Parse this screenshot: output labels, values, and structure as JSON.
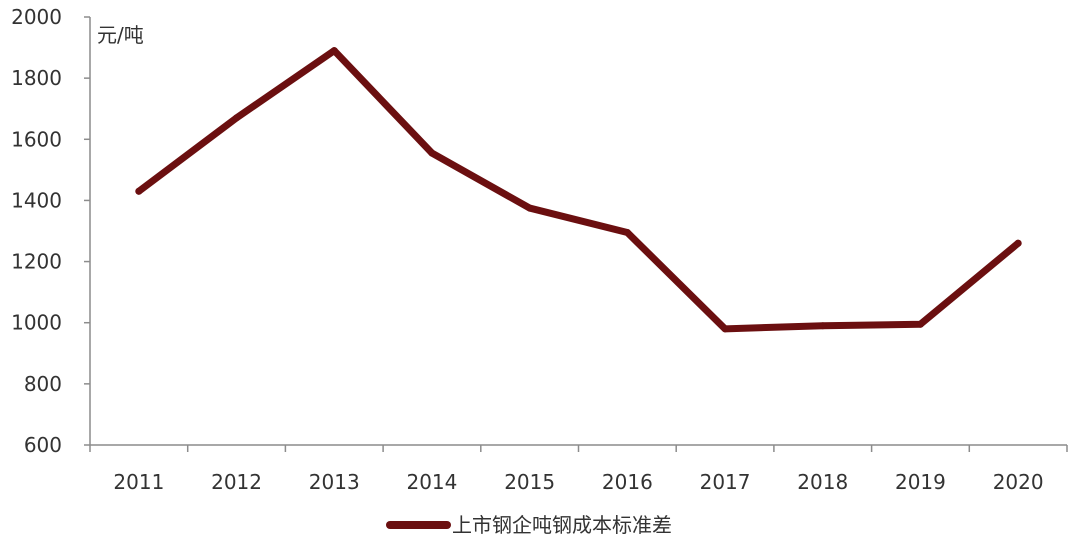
{
  "chart_data": {
    "type": "line",
    "y_unit_label": "元/吨",
    "categories": [
      "2011",
      "2012",
      "2013",
      "2014",
      "2015",
      "2016",
      "2017",
      "2018",
      "2019",
      "2020"
    ],
    "series": [
      {
        "name": "上市钢企吨钢成本标准差",
        "color": "#6b0f10",
        "values": [
          1430,
          1670,
          1890,
          1555,
          1375,
          1295,
          980,
          990,
          995,
          1260
        ]
      }
    ],
    "ylim": [
      600,
      2000
    ],
    "yticks": [
      600,
      800,
      1000,
      1200,
      1400,
      1600,
      1800,
      2000
    ],
    "grid": false,
    "legend_position": "bottom-center"
  }
}
